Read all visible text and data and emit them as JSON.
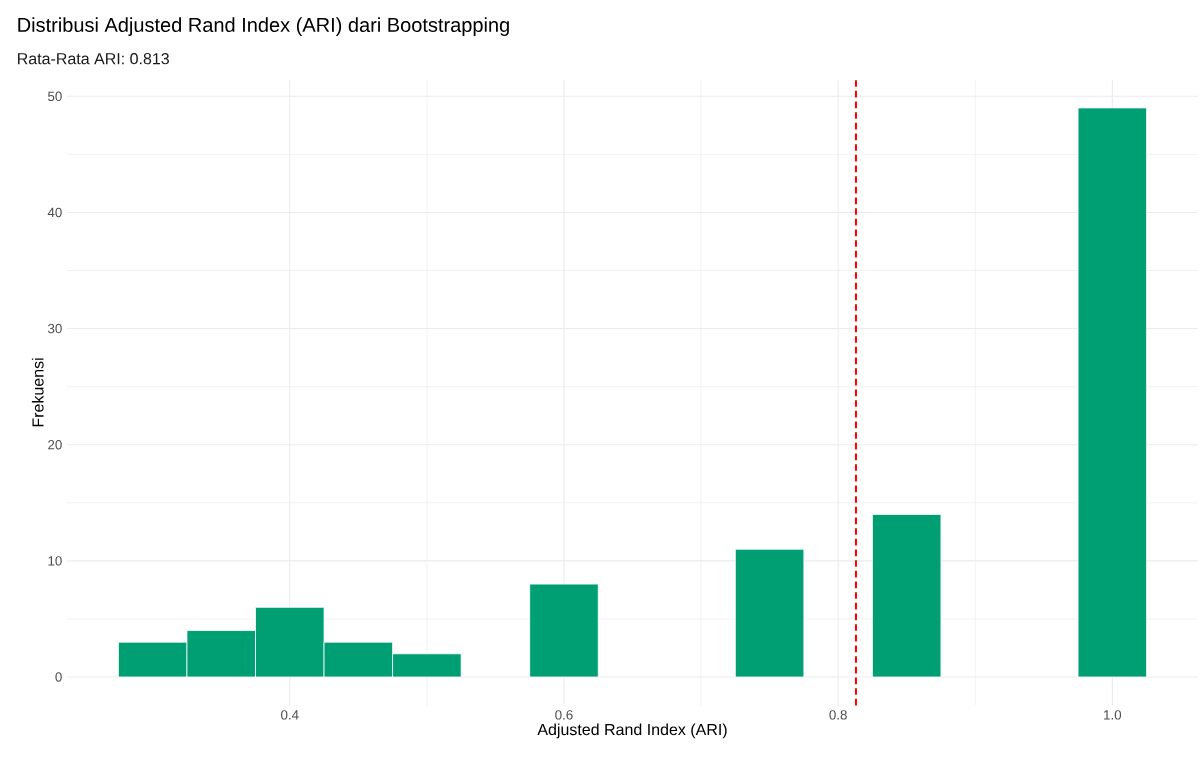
{
  "chart_data": {
    "type": "histogram",
    "title": "Distribusi Adjusted Rand Index (ARI) dari Bootstrapping",
    "subtitle": "Rata-Rata ARI: 0.813",
    "xlabel": "Adjusted Rand Index (ARI)",
    "ylabel": "Frekuensi",
    "bins": [
      0.275,
      0.325,
      0.375,
      0.425,
      0.475,
      0.525,
      0.575,
      0.625,
      0.675,
      0.725,
      0.775,
      0.825,
      0.875,
      0.925,
      0.975,
      1.025
    ],
    "values": [
      3,
      4,
      6,
      3,
      2,
      0,
      8,
      0,
      0,
      11,
      0,
      14,
      0,
      0,
      49
    ],
    "color": "#009e73",
    "xlim": [
      0.2375,
      1.0625
    ],
    "ylim": [
      -2.45,
      51.45
    ],
    "xticks": [
      0.4,
      0.6,
      0.8,
      {
        "value": 1.0,
        "label": "1.0"
      }
    ],
    "yticks": [
      0,
      10,
      20,
      30,
      40,
      50
    ],
    "grid": true,
    "ref_lines": [
      {
        "axis": "x",
        "value": 0.813,
        "color": "#ff0000",
        "line_style": "dashed"
      }
    ]
  }
}
